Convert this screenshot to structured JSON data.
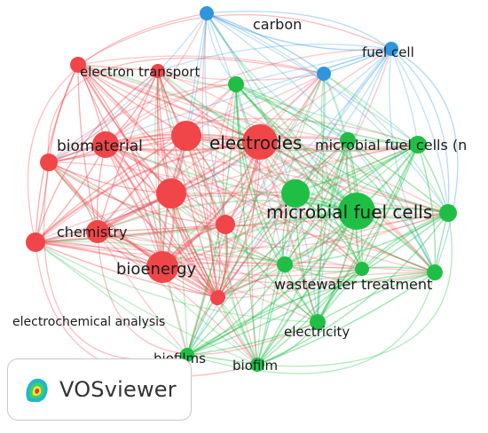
{
  "brand": {
    "name": "VOSviewer"
  },
  "clusters": [
    {
      "id": 1,
      "color": "#f0464a"
    },
    {
      "id": 2,
      "color": "#1fbf46"
    },
    {
      "id": 3,
      "color": "#2f96dc"
    }
  ],
  "nodes": [
    {
      "id": "electrodes",
      "label": "electrodes",
      "cluster": 1,
      "weight": 1.0
    },
    {
      "id": "microbial-fuel-cells",
      "label": "microbial fuel cells",
      "cluster": 2,
      "weight": 1.0
    },
    {
      "id": "bioenergy",
      "label": "bioenergy",
      "cluster": 1,
      "weight": 0.9
    },
    {
      "id": "biomaterial",
      "label": "biomaterial",
      "cluster": 1,
      "weight": 0.65
    },
    {
      "id": "chemistry",
      "label": "chemistry",
      "cluster": 1,
      "weight": 0.6
    },
    {
      "id": "electron-transport",
      "label": "electron transport",
      "cluster": 1,
      "weight": 0.45
    },
    {
      "id": "electrochemical-analysis",
      "label": "electrochemical analysis",
      "cluster": 1,
      "weight": 0.4
    },
    {
      "id": "carbon",
      "label": "carbon",
      "cluster": 3,
      "weight": 0.45
    },
    {
      "id": "fuel-cell",
      "label": "fuel cell",
      "cluster": 3,
      "weight": 0.45
    },
    {
      "id": "microbial-fuel-cells-n",
      "label": "microbial fuel cells (n",
      "cluster": 2,
      "weight": 0.55
    },
    {
      "id": "wastewater-treatment",
      "label": "wastewater treatment",
      "cluster": 2,
      "weight": 0.55
    },
    {
      "id": "electricity",
      "label": "electricity",
      "cluster": 2,
      "weight": 0.45
    },
    {
      "id": "biofilm",
      "label": "biofilm",
      "cluster": 2,
      "weight": 0.45
    },
    {
      "id": "biofilms",
      "label": "biofilms",
      "cluster": 2,
      "weight": 0.45
    }
  ]
}
